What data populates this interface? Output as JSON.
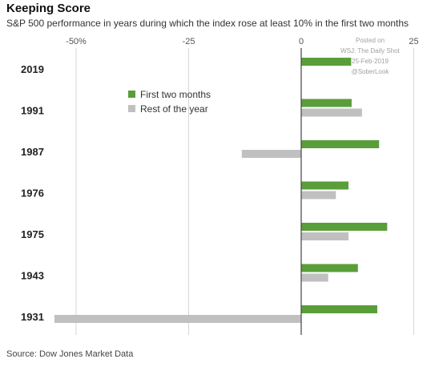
{
  "title": "Keeping Score",
  "subtitle": "S&P 500 performance in years during which the index rose at least 10% in the first two months",
  "source": "Source: Dow Jones Market Data",
  "watermark": {
    "line1": "Posted on",
    "line2": "WSJ: The Daily Shot",
    "line3": "25-Feb-2019",
    "line4": "@SoberLook"
  },
  "colors": {
    "first_two_months": "#5a9e3a",
    "rest_of_year": "#c0c0c0",
    "gridline": "#d6d6d6",
    "zero_line": "#444444"
  },
  "chart_data": {
    "type": "bar",
    "orientation": "horizontal",
    "title": "Keeping Score",
    "subtitle": "S&P 500 performance in years during which the index rose at least 10% in the first two months",
    "categories": [
      "2019",
      "1991",
      "1987",
      "1976",
      "1975",
      "1943",
      "1931"
    ],
    "series": [
      {
        "name": "First two months",
        "values": [
          11.1,
          11.2,
          17.3,
          10.5,
          19.1,
          12.6,
          16.9
        ]
      },
      {
        "name": "Rest of the year",
        "values": [
          null,
          13.5,
          -13.2,
          7.7,
          10.5,
          6.0,
          -54.8
        ]
      }
    ],
    "x_ticks": [
      {
        "value": -50,
        "label": "-50%"
      },
      {
        "value": -25,
        "label": "-25"
      },
      {
        "value": 0,
        "label": "0"
      },
      {
        "value": 25,
        "label": "25"
      }
    ],
    "xlim": [
      -55,
      25
    ],
    "grid": true,
    "legend_position": "upper-middle"
  }
}
